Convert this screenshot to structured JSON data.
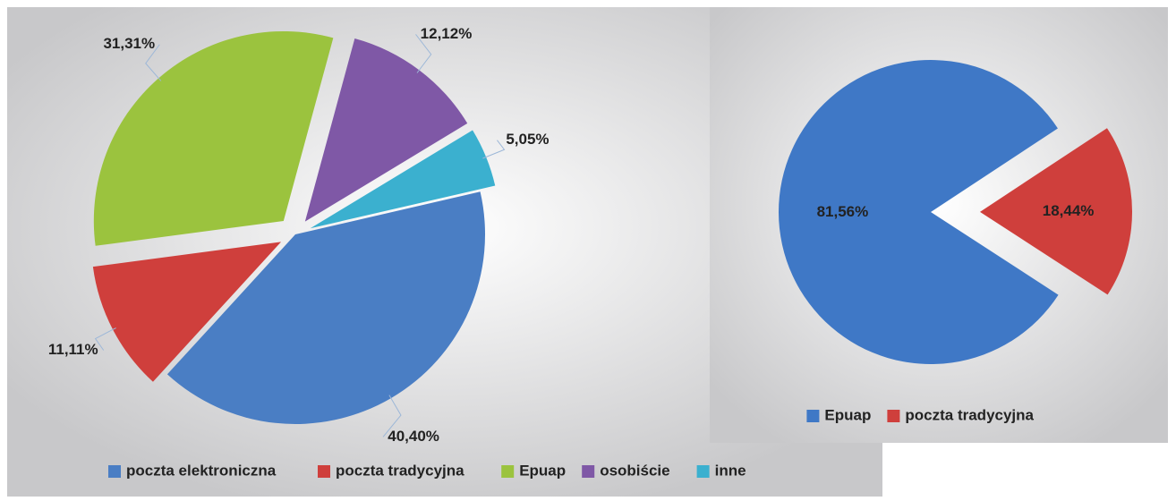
{
  "chart_data": [
    {
      "type": "pie",
      "categories": [
        "poczta elektroniczna",
        "poczta tradycyjna",
        "Epuap",
        "osobiście",
        "inne"
      ],
      "values": [
        40.4,
        11.11,
        31.31,
        12.12,
        5.05
      ],
      "value_labels": [
        "40,40%",
        "11,11%",
        "31,31%",
        "12,12%",
        "5,05%"
      ],
      "colors": [
        "#4a7ec4",
        "#cf3f3c",
        "#9bc33e",
        "#7f58a6",
        "#3bb0cf"
      ],
      "label_position": "outside",
      "legend": "bottom"
    },
    {
      "type": "pie",
      "categories": [
        "Epuap",
        "poczta tradycyjna"
      ],
      "values": [
        81.56,
        18.44
      ],
      "value_labels": [
        "81,56%",
        "18,44%"
      ],
      "colors": [
        "#3f78c6",
        "#cf3f3c"
      ],
      "label_position": "inside",
      "legend": "bottom"
    }
  ]
}
